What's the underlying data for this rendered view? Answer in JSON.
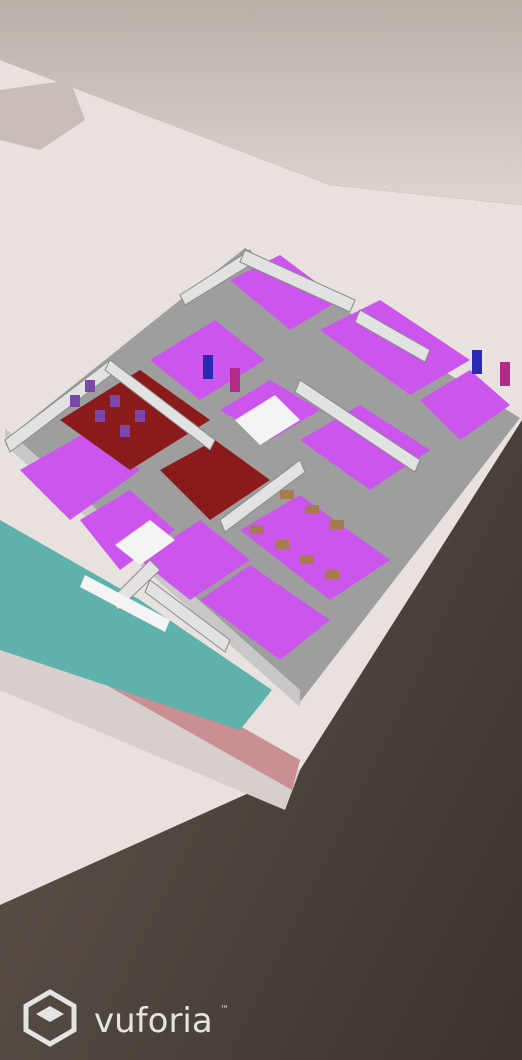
{
  "watermark": {
    "text": "vuforia",
    "trademark": "™"
  }
}
